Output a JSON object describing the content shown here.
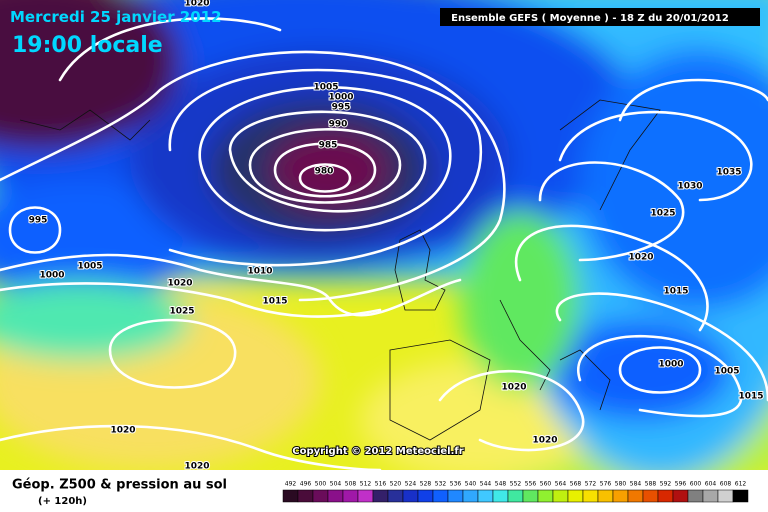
{
  "header": {
    "date": "Mercredi 25 janvier 2012",
    "time": "19:00 locale",
    "model": "Ensemble GEFS ( Moyenne )  -  18 Z du 20/01/2012"
  },
  "copyright": "Copyright © 2012 Meteociel.fr",
  "footer": {
    "title": "Géop. Z500 & pression au sol",
    "lead": "(+ 120h)"
  },
  "isobar_labels": [
    "1020",
    "1005",
    "1000",
    "995",
    "990",
    "985",
    "980",
    "995",
    "1000",
    "1005",
    "1020",
    "1025",
    "1010",
    "1015",
    "1030",
    "1035",
    "1025",
    "1020",
    "1015",
    "1000",
    "1005",
    "1015",
    "1020",
    "1020",
    "1020",
    "1020"
  ],
  "legend": {
    "values": [
      492,
      496,
      500,
      504,
      508,
      512,
      516,
      520,
      524,
      528,
      532,
      536,
      540,
      544,
      548,
      552,
      556,
      560,
      564,
      568,
      572,
      576,
      580,
      584,
      588,
      592,
      596,
      600,
      604,
      608,
      612
    ],
    "colors": [
      "#2a0a22",
      "#4a0c3a",
      "#6a0c5a",
      "#8a108a",
      "#a018a8",
      "#c030c8",
      "#34206a",
      "#28309a",
      "#1830c8",
      "#1040e8",
      "#1060ff",
      "#2088ff",
      "#30a8ff",
      "#40c8ff",
      "#40e8e8",
      "#40e8a0",
      "#60e860",
      "#90f030",
      "#c0f010",
      "#e8f000",
      "#f8e000",
      "#f8c000",
      "#f8a000",
      "#f07800",
      "#e85000",
      "#d82800",
      "#b01010",
      "#808080",
      "#a8a8a8",
      "#d0d0d0",
      "#000000"
    ]
  }
}
